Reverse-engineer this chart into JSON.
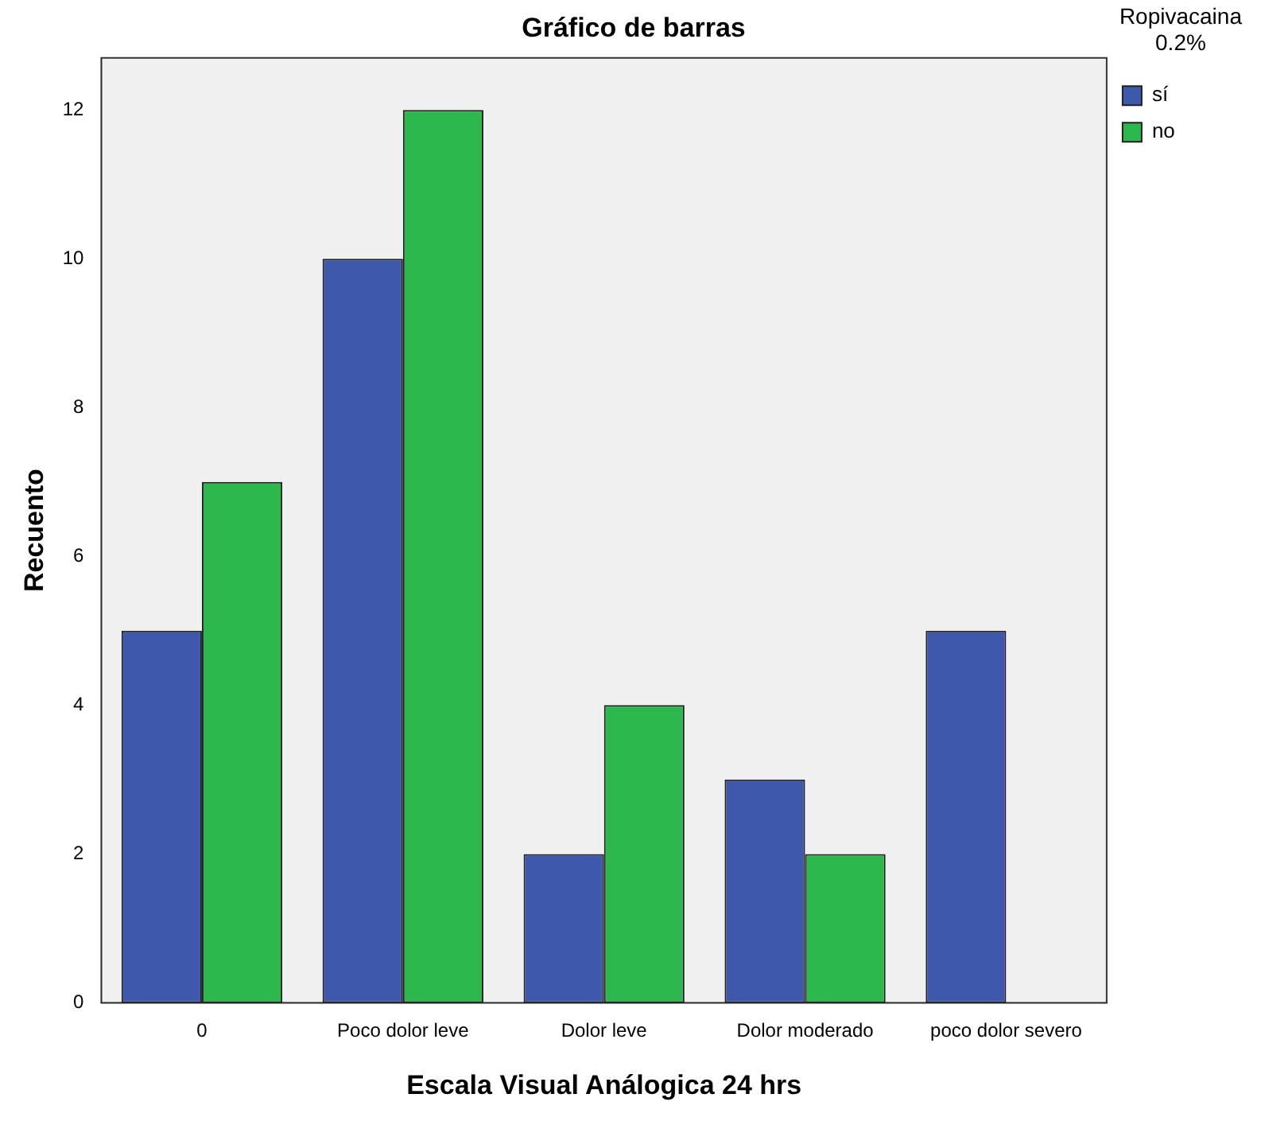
{
  "chart_data": {
    "type": "bar",
    "title": "Gráfico de barras",
    "xlabel": "Escala Visual Análogica 24 hrs",
    "ylabel": "Recuento",
    "legend_title": "Ropivacaina 0.2%",
    "categories": [
      "0",
      "Poco dolor leve",
      "Dolor leve",
      "Dolor moderado",
      "poco dolor severo"
    ],
    "series": [
      {
        "name": "sí",
        "color": "#3e58ac",
        "values": [
          5,
          10,
          2,
          3,
          5
        ]
      },
      {
        "name": "no",
        "color": "#2db84d",
        "values": [
          7,
          12,
          4,
          2,
          0
        ]
      }
    ],
    "ylim": [
      0,
      12.7
    ],
    "yticks": [
      0,
      2,
      4,
      6,
      8,
      10,
      12
    ],
    "grid": false,
    "legend": "top right"
  }
}
